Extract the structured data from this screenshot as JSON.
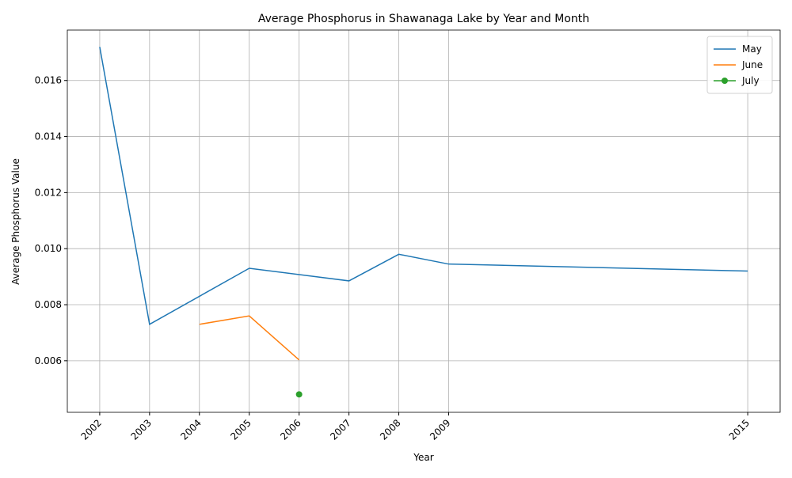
{
  "chart_data": {
    "type": "line",
    "title": "Average Phosphorus in Shawanaga Lake by Year and Month",
    "xlabel": "Year",
    "ylabel": "Average Phosphorus Value",
    "series": [
      {
        "name": "May",
        "color": "#1f77b4",
        "marker": false,
        "x": [
          2002,
          2003,
          2005,
          2007,
          2008,
          2009,
          2015
        ],
        "values": [
          0.0172,
          0.0073,
          0.0093,
          0.00885,
          0.0098,
          0.00945,
          0.0092
        ]
      },
      {
        "name": "June",
        "color": "#ff7f0e",
        "marker": false,
        "x": [
          2004,
          2005,
          2006
        ],
        "values": [
          0.0073,
          0.0076,
          0.00603
        ]
      },
      {
        "name": "July",
        "color": "#2ca02c",
        "marker": true,
        "x": [
          2006
        ],
        "values": [
          0.0048
        ]
      }
    ],
    "xlim": [
      2001.35,
      2015.65
    ],
    "xticks": [
      2002,
      2003,
      2004,
      2005,
      2006,
      2007,
      2008,
      2009,
      2015
    ],
    "ylim": [
      0.00416,
      0.0178
    ],
    "yticks": [
      0.006,
      0.008,
      {
        "value": 0.01,
        "label": "0.010"
      },
      0.012,
      0.014,
      0.016
    ],
    "grid": true,
    "legend": "upper right"
  }
}
